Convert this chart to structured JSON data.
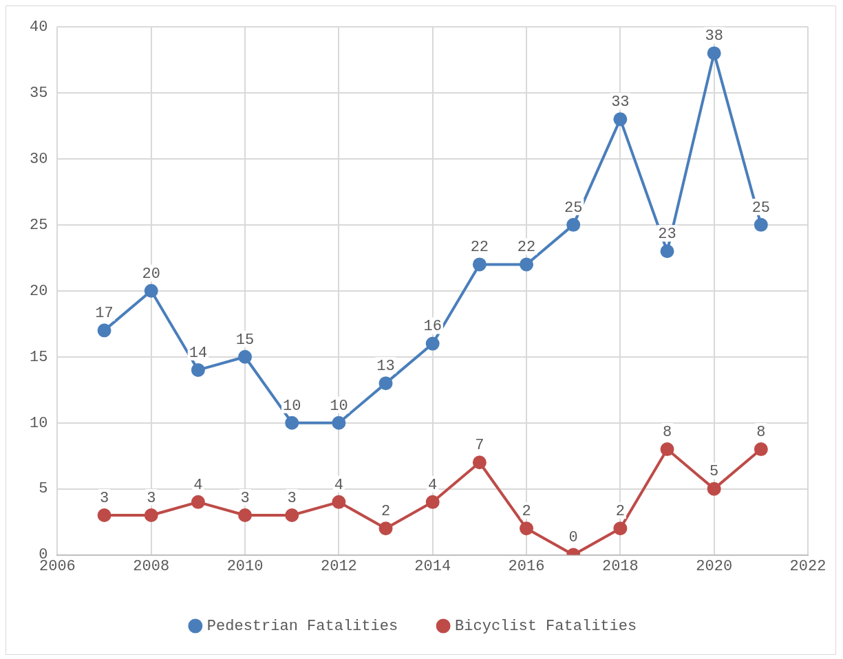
{
  "chart_data": {
    "type": "line",
    "x": [
      2007,
      2008,
      2009,
      2010,
      2011,
      2012,
      2013,
      2014,
      2015,
      2016,
      2017,
      2018,
      2019,
      2020,
      2021
    ],
    "series": [
      {
        "name": "Pedestrian Fatalities",
        "color": "#4a7ebb",
        "values": [
          17,
          20,
          14,
          15,
          10,
          10,
          13,
          16,
          22,
          22,
          25,
          33,
          23,
          38,
          25
        ]
      },
      {
        "name": "Bicyclist Fatalities",
        "color": "#be4b48",
        "values": [
          3,
          3,
          4,
          3,
          3,
          4,
          2,
          4,
          7,
          2,
          0,
          2,
          8,
          5,
          8
        ]
      }
    ],
    "xlim": [
      2006,
      2022
    ],
    "xticks": [
      2006,
      2008,
      2010,
      2012,
      2014,
      2016,
      2018,
      2020,
      2022
    ],
    "ylim": [
      0,
      40
    ],
    "yticks": [
      0,
      5,
      10,
      15,
      20,
      25,
      30,
      35,
      40
    ],
    "grid": true,
    "legend": "bottom",
    "marker": "circle",
    "line_style": "solid",
    "data_labels": true
  }
}
